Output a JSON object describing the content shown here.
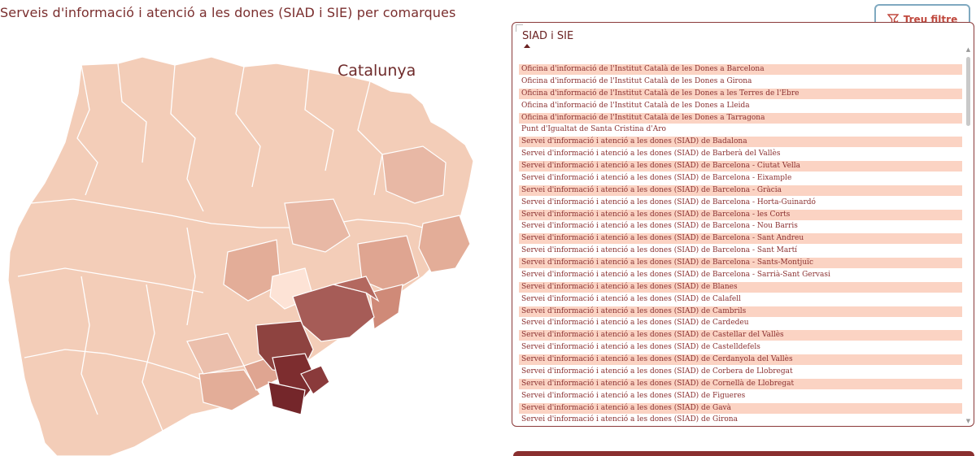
{
  "page": {
    "title": "Serveis d'informació i atenció a les dones (SIAD i SIE) per comarques"
  },
  "map": {
    "label": "Catalunya"
  },
  "toolbar": {
    "clear_filter_label": "Treu filtre",
    "clear_filter_icon": "filter-clear-icon"
  },
  "slicer": {
    "header": "SIAD i SIE",
    "sort": "ascending",
    "items": [
      {
        "label": "Oficina d'informació de l'Institut Català de les Dones a Barcelona",
        "selected": true
      },
      {
        "label": "Oficina d'informació de l'Institut Català de les Dones a Girona",
        "selected": false
      },
      {
        "label": "Oficina d'informació de l'Institut Català de les Dones a les Terres de l'Ebre",
        "selected": true
      },
      {
        "label": "Oficina d'informació de l'Institut Català de les Dones a Lleida",
        "selected": false
      },
      {
        "label": "Oficina d'informació de l'Institut Català de les Dones a Tarragona",
        "selected": true
      },
      {
        "label": "Punt d'Igualtat de Santa Cristina d'Aro",
        "selected": false
      },
      {
        "label": "Servei d'informació i atenció a les dones (SIAD) de Badalona",
        "selected": true
      },
      {
        "label": "Servei d'informació i atenció a les dones (SIAD) de Barberà del Vallès",
        "selected": false
      },
      {
        "label": "Servei d'informació i atenció a les dones (SIAD) de Barcelona - Ciutat Vella",
        "selected": true
      },
      {
        "label": "Servei d'informació i atenció a les dones (SIAD) de Barcelona - Eixample",
        "selected": false
      },
      {
        "label": "Servei d'informació i atenció a les dones (SIAD) de Barcelona - Gràcia",
        "selected": true
      },
      {
        "label": "Servei d'informació i atenció a les dones (SIAD) de Barcelona - Horta-Guinardó",
        "selected": false
      },
      {
        "label": "Servei d'informació i atenció a les dones (SIAD) de Barcelona - les Corts",
        "selected": true
      },
      {
        "label": "Servei d'informació i atenció a les dones (SIAD) de Barcelona - Nou Barris",
        "selected": false
      },
      {
        "label": "Servei d'informació i atenció a les dones (SIAD) de Barcelona - Sant Andreu",
        "selected": true
      },
      {
        "label": "Servei d'informació i atenció a les dones (SIAD) de Barcelona - Sant Martí",
        "selected": false
      },
      {
        "label": "Servei d'informació i atenció a les dones (SIAD) de Barcelona - Sants-Montjuïc",
        "selected": true
      },
      {
        "label": "Servei d'informació i atenció a les dones (SIAD) de Barcelona - Sarrià-Sant Gervasi",
        "selected": false
      },
      {
        "label": "Servei d'informació i atenció a les dones (SIAD) de Blanes",
        "selected": true
      },
      {
        "label": "Servei d'informació i atenció a les dones (SIAD) de Calafell",
        "selected": false
      },
      {
        "label": "Servei d'informació i atenció a les dones (SIAD) de Cambrils",
        "selected": true
      },
      {
        "label": "Servei d'informació i atenció a les dones (SIAD) de Cardedeu",
        "selected": false
      },
      {
        "label": "Servei d'informació i atenció a les dones (SIAD) de Castellar del Vallès",
        "selected": true
      },
      {
        "label": "Servei d'informació i atenció a les dones (SIAD) de Castelldefels",
        "selected": false
      },
      {
        "label": "Servei d'informació i atenció a les dones (SIAD) de Cerdanyola del Vallès",
        "selected": true
      },
      {
        "label": "Servei d'informació i atenció a les dones (SIAD) de Corbera de Llobregat",
        "selected": false
      },
      {
        "label": "Servei d'informació i atenció a les dones (SIAD) de Cornellà de Llobregat",
        "selected": true
      },
      {
        "label": "Servei d'informació i atenció a les dones (SIAD) de Figueres",
        "selected": false
      },
      {
        "label": "Servei d'informació i atenció a les dones (SIAD) de Gavà",
        "selected": true
      },
      {
        "label": "Servei d'informació i atenció a les dones (SIAD) de Girona",
        "selected": false
      }
    ]
  },
  "colors": {
    "accent": "#7a2e2e",
    "selected_row": "#fbd3c3",
    "map_light": "#f3cdb8",
    "map_mid": "#e3b09e",
    "map_dark": "#a65a55",
    "map_darkest": "#7a2a2c",
    "border": "#8a3a3a"
  }
}
